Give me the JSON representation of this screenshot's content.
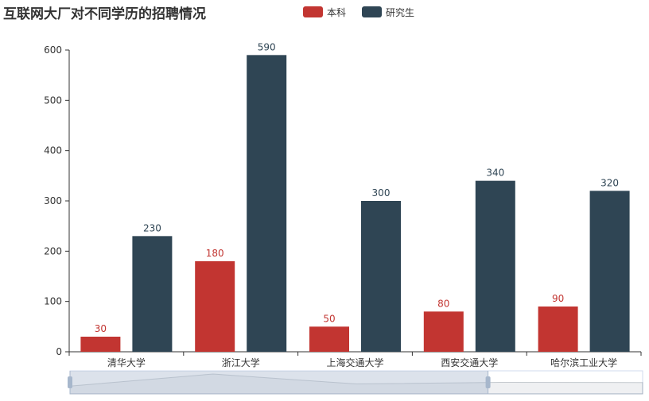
{
  "chart_data": {
    "type": "bar",
    "title": "互联网大厂对不同学历的招聘情况",
    "categories": [
      "清华大学",
      "浙江大学",
      "上海交通大学",
      "西安交通大学",
      "哈尔滨工业大学"
    ],
    "series": [
      {
        "name": "本科",
        "values": [
          30,
          180,
          50,
          80,
          90
        ],
        "color": "#c23531"
      },
      {
        "name": "研究生",
        "values": [
          230,
          590,
          300,
          340,
          320
        ],
        "color": "#2f4554"
      }
    ],
    "yticks": [
      0,
      100,
      200,
      300,
      400,
      500,
      600
    ],
    "ylim": [
      0,
      600
    ],
    "xlabel": "",
    "ylabel": "",
    "legend_position": "top-center",
    "show_data_labels": true,
    "grid": false,
    "datazoom": {
      "type": "slider",
      "start_fraction": 0,
      "end_fraction": 0.73
    }
  }
}
